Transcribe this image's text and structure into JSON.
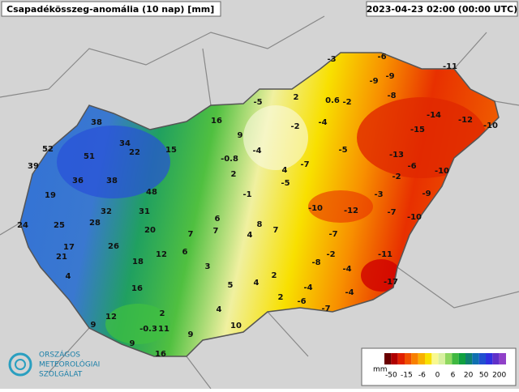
{
  "header": {
    "title": "Csapadékösszeg-anomália (10 nap) [mm]",
    "timestamp": "2023-04-23 02:00 (00:00 UTC)"
  },
  "logo": [
    "ORSZÁGOS",
    "METEOROLÓGIAI",
    "SZOLGÁLAT"
  ],
  "legend": {
    "unit": "mm",
    "labels": [
      "-50",
      "-15",
      "-6",
      "0",
      "6",
      "20",
      "50",
      "200"
    ],
    "colors": [
      "#6a0000",
      "#b00000",
      "#e02000",
      "#f05000",
      "#f88000",
      "#f8b000",
      "#f8e000",
      "#f8f890",
      "#d8f0a0",
      "#90d860",
      "#40b840",
      "#10a040",
      "#108070",
      "#1070b0",
      "#2050d0",
      "#3030e0",
      "#6030c8",
      "#9040c8"
    ]
  },
  "stations": [
    "-3",
    "-6",
    "-11",
    "-9",
    "-9",
    "-8",
    "-5",
    "2",
    "0.6",
    "-2",
    "16",
    "-2",
    "-4",
    "-14",
    "-12",
    "-10",
    "-15",
    "9",
    "-4",
    "-5",
    "-13",
    "-0.8",
    "4",
    "-7",
    "-6",
    "-10",
    "2",
    "-5",
    "-2",
    "-1",
    "-3",
    "-9",
    "-10",
    "-12",
    "-7",
    "-10",
    "6",
    "8",
    "7",
    "7",
    "4",
    "7",
    "-7",
    "-11",
    "6",
    "-2",
    "-8",
    "-4",
    "3",
    "2",
    "-17",
    "5",
    "4",
    "-4",
    "-4",
    "2",
    "-6",
    "-7",
    "4",
    "10",
    "38",
    "52",
    "34",
    "22",
    "15",
    "51",
    "39",
    "36",
    "38",
    "48",
    "19",
    "32",
    "31",
    "24",
    "25",
    "28",
    "20",
    "17",
    "26",
    "21",
    "12",
    "18",
    "4",
    "16",
    "2",
    "12",
    "9",
    "-0.3",
    "11",
    "9",
    "9",
    "16"
  ]
}
